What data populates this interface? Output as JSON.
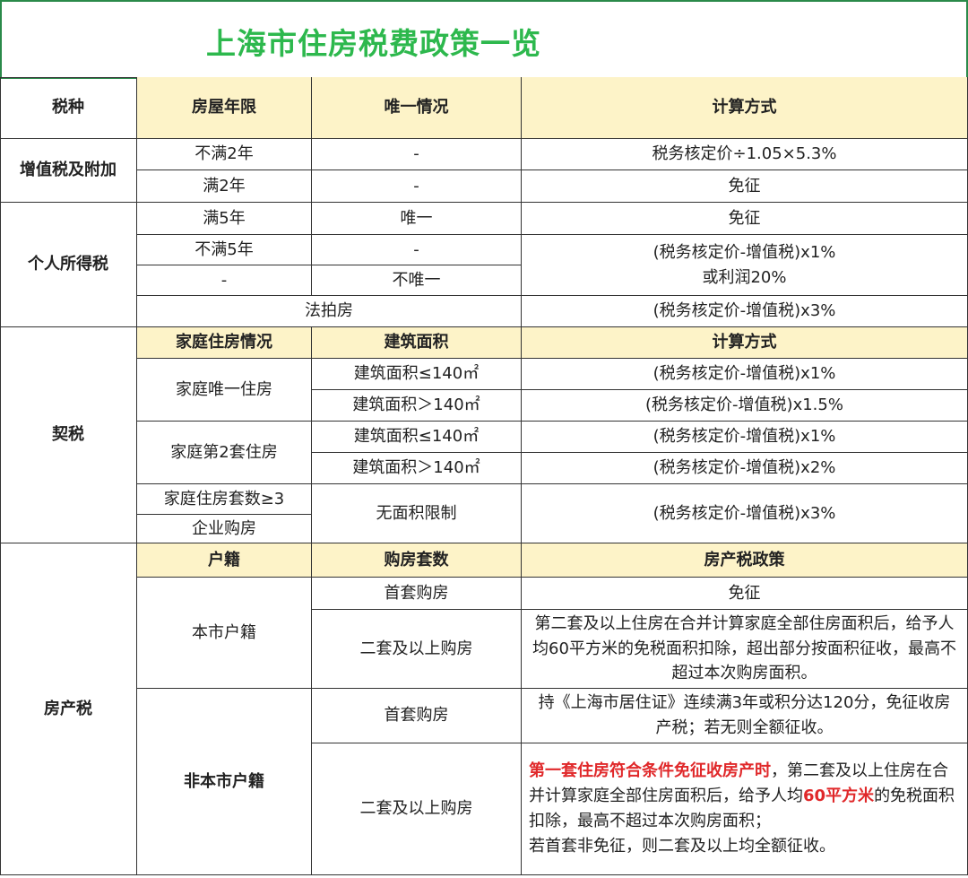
{
  "title": "上海市住房税费政策一览",
  "header": [
    "税种",
    "房屋年限",
    "唯一情况",
    "计算方式"
  ],
  "vat": {
    "name": "增值税及附加",
    "rows": [
      [
        "不满2年",
        "-",
        "税务核定价÷1.05×5.3%"
      ],
      [
        "满2年",
        "-",
        "免征"
      ]
    ]
  },
  "iit": {
    "name": "个人所得税",
    "r1": [
      "满5年",
      "唯一",
      "免征"
    ],
    "r2": [
      "不满5年",
      "-"
    ],
    "r3": [
      "-",
      "不唯一"
    ],
    "formula1": "(税务核定价-增值税)x1%",
    "formula2": "或利润20%",
    "auction": "法拍房",
    "auction_formula": "(税务核定价-增值税)x3%"
  },
  "deed": {
    "name": "契税",
    "header": [
      "家庭住房情况",
      "建筑面积",
      "计算方式"
    ],
    "only": "家庭唯一住房",
    "second": "家庭第2套住房",
    "third": "家庭住房套数≥3",
    "company": "企业购房",
    "nolimit": "无面积限制",
    "area_le": "建筑面积≤140㎡",
    "area_gt": "建筑面积＞140㎡",
    "f1": "(税务核定价-增值税)x1%",
    "f15": "(税务核定价-增值税)x1.5%",
    "f1b": "(税务核定价-增值税)x1%",
    "f2": "(税务核定价-增值税)x2%",
    "f3": "(税务核定价-增值税)x3%"
  },
  "property": {
    "name": "房产税",
    "header": [
      "户籍",
      "购房套数",
      "房产税政策"
    ],
    "local": "本市户籍",
    "nonlocal": "非本市户籍",
    "first": "首套购房",
    "second": "二套及以上购房",
    "local_first": "免征",
    "local_second": "第二套及以上住房在合并计算家庭全部住房面积后，给予人均60平方米的免税面积扣除，超出部分按面积征收，最高不超过本次购房面积。",
    "nonlocal_first": "持《上海市居住证》连续满3年或积分达120分，免征收房产税；若无则全额征收。",
    "nl2_red1": "第一套住房符合条件免征收房产时",
    "nl2_t1": "，第二套及以上住房在合并计算家庭全部住房面积后，给予人均",
    "nl2_red2": "60平方米",
    "nl2_t2": "的免税面积扣除，最高不超过本次购房面积；",
    "nl2_t3": "若首套非免征，则二套及以上均全额征收。"
  },
  "colors": {
    "title": "#2db84d",
    "header_fill": "#fdf3c8",
    "highlight": "#e0282a"
  }
}
